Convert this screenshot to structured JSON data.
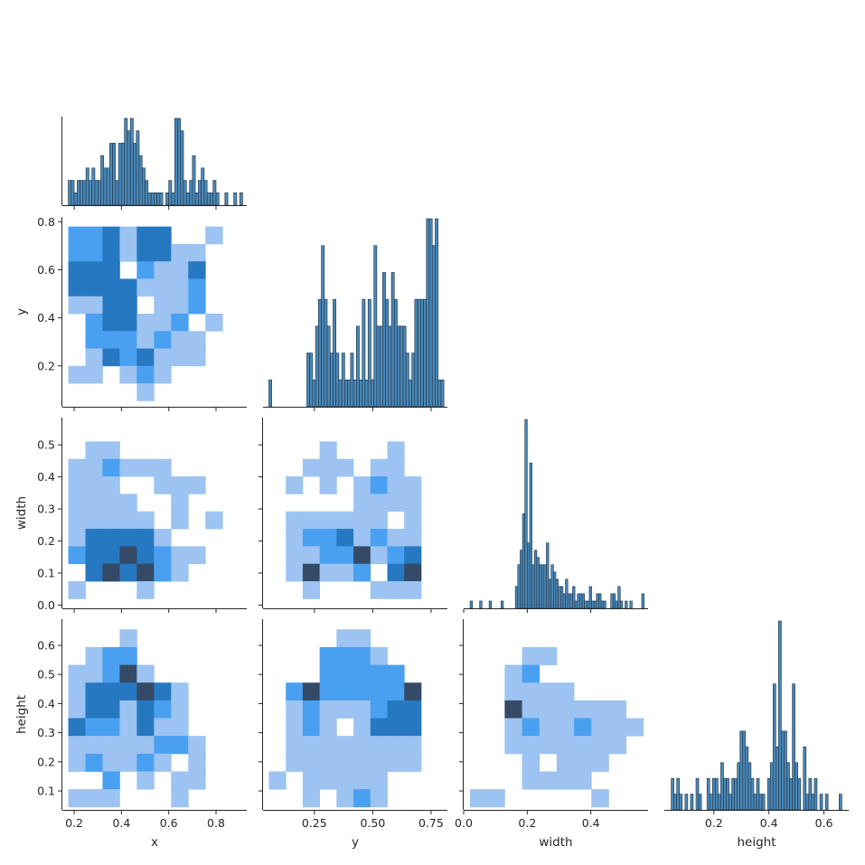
{
  "chart_data": {
    "type": "pairplot",
    "layout": "corner",
    "variables": [
      "x",
      "y",
      "width",
      "height"
    ],
    "diagonal_kind": "histogram",
    "offdiagonal_kind": "2d-histogram",
    "colors": {
      "hist_fill": "#4a88b8",
      "hist_edge": "#1f2f3f",
      "cmap_low": "#9cc3f1",
      "cmap_mid": "#1f8fef",
      "cmap_high": "#344a66",
      "axis": "#262626"
    },
    "diagonal_histograms": {
      "x": {
        "bins": [
          0.175,
          0.1875,
          0.2,
          0.2125,
          0.225,
          0.2375,
          0.25,
          0.2625,
          0.275,
          0.2875,
          0.3,
          0.3125,
          0.325,
          0.3375,
          0.35,
          0.3625,
          0.375,
          0.3875,
          0.4,
          0.4125,
          0.425,
          0.4375,
          0.45,
          0.4625,
          0.475,
          0.4875,
          0.5,
          0.5125,
          0.525,
          0.5375,
          0.55,
          0.5625,
          0.575,
          0.5875,
          0.6,
          0.6125,
          0.625,
          0.6375,
          0.65,
          0.6625,
          0.675,
          0.6875,
          0.7,
          0.7125,
          0.725,
          0.7375,
          0.75,
          0.7625,
          0.775,
          0.7875,
          0.8,
          0.8125,
          0.825,
          0.8375,
          0.85,
          0.8625,
          0.875,
          0.8875,
          0.9,
          0.9125
        ],
        "counts": [
          2,
          2,
          1,
          2,
          2,
          2,
          3,
          2,
          3,
          2,
          2,
          4,
          3,
          3,
          5,
          5,
          2,
          5,
          5,
          7,
          6,
          7,
          5,
          6,
          4,
          3,
          2,
          1,
          1,
          1,
          1,
          1,
          0,
          1,
          2,
          1,
          7,
          7,
          6,
          2,
          1,
          2,
          4,
          1,
          2,
          3,
          2,
          1,
          1,
          2,
          1,
          0,
          0,
          1,
          0,
          0,
          1,
          0,
          1,
          0
        ],
        "xlim": [
          0.15,
          0.93
        ]
      },
      "y": {
        "bins": [
          0.055,
          0.0675,
          0.08,
          0.0925,
          0.105,
          0.1175,
          0.13,
          0.1425,
          0.155,
          0.1675,
          0.18,
          0.1925,
          0.205,
          0.2175,
          0.23,
          0.2425,
          0.255,
          0.2675,
          0.28,
          0.2925,
          0.305,
          0.3175,
          0.33,
          0.3425,
          0.355,
          0.3675,
          0.38,
          0.3925,
          0.405,
          0.4175,
          0.43,
          0.4425,
          0.455,
          0.4675,
          0.48,
          0.4925,
          0.505,
          0.5175,
          0.53,
          0.5425,
          0.555,
          0.5675,
          0.58,
          0.5925,
          0.605,
          0.6175,
          0.63,
          0.6425,
          0.655,
          0.6675,
          0.68,
          0.6925,
          0.705,
          0.7175,
          0.73,
          0.7425,
          0.755,
          0.7675,
          0.78,
          0.7925
        ],
        "counts": [
          1,
          0,
          0,
          0,
          0,
          0,
          0,
          0,
          0,
          0,
          0,
          0,
          0,
          2,
          2,
          1,
          3,
          4,
          6,
          4,
          3,
          2,
          4,
          2,
          1,
          2,
          1,
          1,
          2,
          1,
          3,
          1,
          4,
          1,
          4,
          1,
          6,
          3,
          3,
          5,
          4,
          3,
          5,
          4,
          3,
          3,
          3,
          2,
          1,
          2,
          4,
          4,
          4,
          4,
          7,
          7,
          6,
          7,
          1,
          1
        ],
        "xlim": [
          0.03,
          0.82
        ]
      },
      "width": {
        "bins": [
          0.02,
          0.0275,
          0.035,
          0.0425,
          0.05,
          0.0575,
          0.065,
          0.0725,
          0.08,
          0.0875,
          0.095,
          0.1025,
          0.11,
          0.1175,
          0.125,
          0.1325,
          0.14,
          0.1475,
          0.155,
          0.1625,
          0.17,
          0.1775,
          0.185,
          0.1925,
          0.2,
          0.2075,
          0.215,
          0.2225,
          0.23,
          0.2375,
          0.245,
          0.2525,
          0.26,
          0.2675,
          0.275,
          0.2825,
          0.29,
          0.2975,
          0.305,
          0.3125,
          0.32,
          0.3275,
          0.335,
          0.3425,
          0.35,
          0.3575,
          0.365,
          0.3725,
          0.38,
          0.3875,
          0.395,
          0.4025,
          0.41,
          0.4175,
          0.425,
          0.4325,
          0.44,
          0.4475,
          0.455,
          0.4625,
          0.47,
          0.4775,
          0.485,
          0.4925,
          0.5,
          0.5075,
          0.515,
          0.5225,
          0.53,
          0.5375,
          0.545,
          0.5525,
          0.56
        ],
        "counts": [
          1,
          0,
          0,
          0,
          1,
          0,
          0,
          0,
          1,
          0,
          0,
          0,
          0,
          1,
          0,
          0,
          0,
          0,
          0,
          3,
          6,
          8,
          13,
          26,
          9,
          20,
          6,
          8,
          7,
          6,
          6,
          6,
          9,
          4,
          6,
          5,
          4,
          3,
          3,
          2,
          4,
          2,
          2,
          3,
          1,
          2,
          2,
          2,
          1,
          1,
          3,
          1,
          1,
          2,
          2,
          1,
          1,
          0,
          0,
          2,
          2,
          1,
          3,
          1,
          0,
          1,
          0,
          1,
          0,
          0,
          0,
          0,
          2
        ],
        "xlim": [
          0.0,
          0.58
        ]
      },
      "height": {
        "bins": [
          0.045,
          0.055,
          0.065,
          0.075,
          0.085,
          0.095,
          0.105,
          0.115,
          0.125,
          0.135,
          0.145,
          0.155,
          0.165,
          0.175,
          0.185,
          0.195,
          0.205,
          0.215,
          0.225,
          0.235,
          0.245,
          0.255,
          0.265,
          0.275,
          0.285,
          0.295,
          0.305,
          0.315,
          0.325,
          0.335,
          0.345,
          0.355,
          0.365,
          0.375,
          0.385,
          0.395,
          0.405,
          0.415,
          0.425,
          0.435,
          0.445,
          0.455,
          0.465,
          0.475,
          0.485,
          0.495,
          0.505,
          0.515,
          0.525,
          0.535,
          0.545,
          0.555,
          0.565,
          0.575,
          0.585,
          0.595,
          0.605,
          0.615,
          0.625,
          0.635,
          0.645,
          0.655
        ],
        "counts": [
          2,
          1,
          2,
          1,
          0,
          1,
          0,
          1,
          0,
          2,
          1,
          0,
          0,
          2,
          1,
          2,
          2,
          1,
          3,
          2,
          2,
          1,
          2,
          2,
          3,
          5,
          5,
          4,
          3,
          2,
          1,
          2,
          1,
          1,
          0,
          2,
          3,
          8,
          4,
          12,
          5,
          5,
          3,
          2,
          8,
          3,
          2,
          0,
          4,
          1,
          2,
          1,
          2,
          0,
          1,
          0,
          1,
          0,
          0,
          0,
          0,
          1
        ],
        "xlim": [
          0.02,
          0.69
        ]
      }
    },
    "joint_histograms": [
      {
        "x_var": "x",
        "y_var": "y",
        "x_edges": [
          0.175,
          0.2475,
          0.32,
          0.3925,
          0.465,
          0.5375,
          0.61,
          0.6825,
          0.755,
          0.8275,
          0.9
        ],
        "y_edges": [
          0.055,
          0.1275,
          0.2,
          0.2725,
          0.345,
          0.4175,
          0.49,
          0.5625,
          0.635,
          0.7075,
          0.78
        ],
        "counts": [
          [
            0,
            0,
            0,
            0,
            0,
            0,
            0,
            0,
            0,
            0
          ],
          [
            0,
            0,
            0,
            0,
            0,
            0,
            0,
            0,
            0,
            0
          ],
          [
            0,
            0,
            0,
            0,
            1,
            2,
            1,
            0,
            0,
            0
          ],
          [
            1,
            1,
            0,
            0,
            1,
            2,
            1,
            0,
            0,
            0
          ],
          [
            0,
            0,
            0,
            0,
            0,
            0,
            0,
            0,
            0,
            0
          ],
          [
            0,
            2,
            0,
            0,
            0,
            0,
            0,
            0,
            0,
            0
          ],
          [
            0,
            0,
            0,
            0,
            0,
            0,
            0,
            0,
            0,
            0
          ],
          [
            0,
            0,
            0,
            0,
            0,
            0,
            0,
            0,
            0,
            0
          ],
          [
            0,
            0,
            0,
            0,
            0,
            0,
            0,
            0,
            0,
            0
          ],
          [
            0,
            0,
            0,
            0,
            0,
            0,
            0,
            0,
            0,
            0
          ]
        ]
      },
      {
        "x_var": "x",
        "y_var": "width",
        "x_edges": [
          0.175,
          0.2475,
          0.32,
          0.3925,
          0.465,
          0.5375,
          0.61,
          0.6825,
          0.755,
          0.8275,
          0.9
        ],
        "y_edges": [
          0.02,
          0.0745,
          0.129,
          0.1835,
          0.238,
          0.2925,
          0.347,
          0.4015,
          0.456,
          0.5105,
          0.565
        ],
        "counts": []
      },
      {
        "x_var": "y",
        "y_var": "width",
        "x_edges": [
          0.055,
          0.1275,
          0.2,
          0.2725,
          0.345,
          0.4175,
          0.49,
          0.5625,
          0.635,
          0.7075,
          0.78
        ],
        "y_edges": [
          0.02,
          0.0745,
          0.129,
          0.1835,
          0.238,
          0.2925,
          0.347,
          0.4015,
          0.456,
          0.5105,
          0.565
        ],
        "counts": []
      },
      {
        "x_var": "x",
        "y_var": "height",
        "x_edges": [
          0.175,
          0.2475,
          0.32,
          0.3925,
          0.465,
          0.5375,
          0.61,
          0.6825,
          0.755,
          0.8275,
          0.9
        ],
        "y_edges": [
          0.045,
          0.106,
          0.167,
          0.228,
          0.289,
          0.35,
          0.411,
          0.472,
          0.533,
          0.594,
          0.655
        ],
        "counts": []
      },
      {
        "x_var": "y",
        "y_var": "height",
        "x_edges": [
          0.055,
          0.1275,
          0.2,
          0.2725,
          0.345,
          0.4175,
          0.49,
          0.5625,
          0.635,
          0.7075,
          0.78
        ],
        "y_edges": [
          0.045,
          0.106,
          0.167,
          0.228,
          0.289,
          0.35,
          0.411,
          0.472,
          0.533,
          0.594,
          0.655
        ],
        "counts": []
      },
      {
        "x_var": "width",
        "y_var": "height",
        "x_edges": [
          0.02,
          0.0745,
          0.129,
          0.1835,
          0.238,
          0.2925,
          0.347,
          0.4015,
          0.456,
          0.5105,
          0.565
        ],
        "y_edges": [
          0.045,
          0.106,
          0.167,
          0.228,
          0.289,
          0.35,
          0.411,
          0.472,
          0.533,
          0.594,
          0.655
        ],
        "counts": []
      }
    ],
    "axes": {
      "x": {
        "label": "x",
        "ticks": [
          0.2,
          0.4,
          0.6,
          0.8
        ],
        "tick_labels": [
          "0.2",
          "0.4",
          "0.6",
          "0.8"
        ]
      },
      "y": {
        "label": "y",
        "ticks": [
          0.2,
          0.4,
          0.6,
          0.8
        ],
        "tick_labels": [
          "0.2",
          "0.4",
          "0.6",
          "0.8"
        ],
        "ylim": [
          0.03,
          0.82
        ],
        "x_ticks": [
          0.25,
          0.5,
          0.75
        ],
        "x_tick_labels": [
          "0.25",
          "0.50",
          "0.75"
        ]
      },
      "width": {
        "label": "width",
        "ticks": [
          0.0,
          0.1,
          0.2,
          0.3,
          0.4,
          0.5
        ],
        "tick_labels": [
          "0.0",
          "0.1",
          "0.2",
          "0.3",
          "0.4",
          "0.5"
        ],
        "ylim": [
          -0.01,
          0.585
        ],
        "x_ticks": [
          0.0,
          0.2,
          0.4
        ],
        "x_tick_labels": [
          "0.0",
          "0.2",
          "0.4"
        ]
      },
      "height": {
        "label": "height",
        "ticks": [
          0.1,
          0.2,
          0.3,
          0.4,
          0.5,
          0.6
        ],
        "tick_labels": [
          "0.1",
          "0.2",
          "0.3",
          "0.4",
          "0.5",
          "0.6"
        ],
        "ylim": [
          0.035,
          0.69
        ],
        "x_ticks": [
          0.2,
          0.4,
          0.6
        ],
        "x_tick_labels": [
          "0.2",
          "0.4",
          "0.6"
        ]
      }
    }
  }
}
